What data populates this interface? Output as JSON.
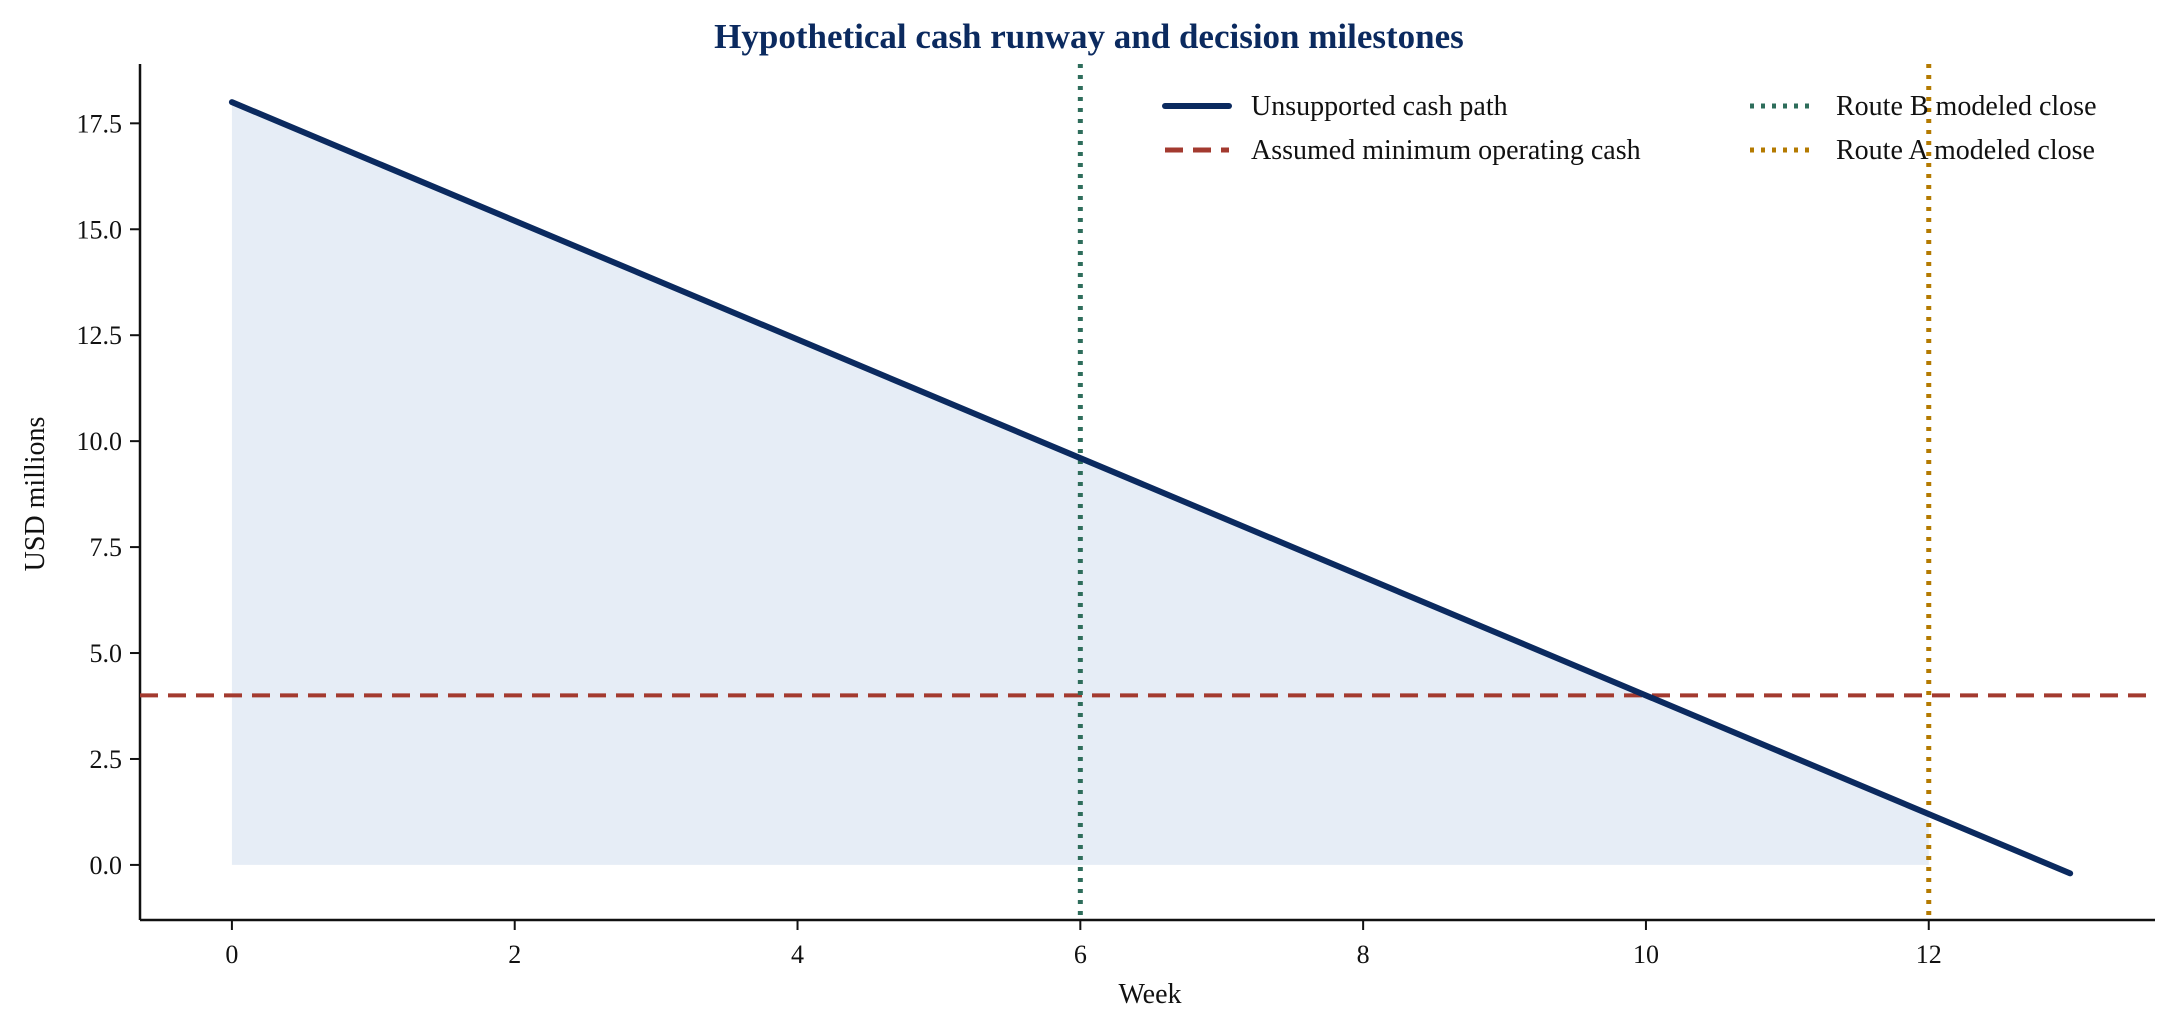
{
  "chart_data": {
    "type": "line",
    "title": "Hypothetical cash runway and decision milestones",
    "xlabel": "Week",
    "ylabel": "USD millions",
    "xlim": [
      -0.65,
      13.6
    ],
    "ylim": [
      -1.3,
      18.9
    ],
    "x_ticks": [
      0,
      2,
      4,
      6,
      8,
      10,
      12
    ],
    "x_tick_labels": [
      "0",
      "2",
      "4",
      "6",
      "8",
      "10",
      "12"
    ],
    "y_ticks": [
      0,
      2.5,
      5,
      7.5,
      10,
      12.5,
      15,
      17.5
    ],
    "y_tick_labels": [
      "0.0",
      "2.5",
      "5.0",
      "7.5",
      "10.0",
      "12.5",
      "15.0",
      "17.5"
    ],
    "grid": false,
    "legend_position": "top-right",
    "legend_columns": 2,
    "series": [
      {
        "name": "Unsupported cash path",
        "kind": "line",
        "style": "solid",
        "color": "#0b2a5f",
        "x": [
          0,
          13
        ],
        "y": [
          18.0,
          -0.2
        ]
      },
      {
        "name": "Assumed minimum operating cash",
        "kind": "hline",
        "style": "dashed",
        "color": "#a33a2f",
        "y": 4.0
      },
      {
        "name": "Route B modeled close",
        "kind": "vline",
        "style": "dotted",
        "color": "#2e6d5b",
        "x": 6
      },
      {
        "name": "Route A modeled close",
        "kind": "vline",
        "style": "dotted",
        "color": "#b47a00",
        "x": 12
      }
    ],
    "fill": {
      "x_from": 0,
      "x_to": 12,
      "color": "#e6edf6"
    },
    "colors": {
      "title": "#0b2a5f",
      "axis": "#111111"
    }
  }
}
